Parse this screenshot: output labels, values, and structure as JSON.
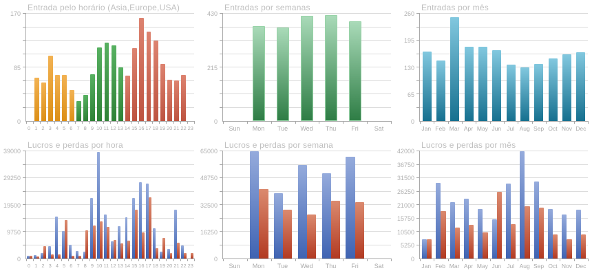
{
  "palettes": {
    "asia": [
      "#f2b253",
      "#dc8f16"
    ],
    "europe": [
      "#57b161",
      "#2e8136"
    ],
    "usa": [
      "#dd8370",
      "#bd5340"
    ],
    "green2": [
      "#a9dab8",
      "#2e7d45",
      "#97d3a7"
    ],
    "teal": [
      "#82c8df",
      "#16708f"
    ],
    "blue": [
      "#95abdc",
      "#3f63b2"
    ],
    "red": [
      "#db8a6f",
      "#b23a22"
    ]
  },
  "chart_data": [
    {
      "id": "entries-by-hour",
      "type": "bar",
      "title": "Entrada pelo horário (Asia,Europe,USA)",
      "xlabel": "",
      "ylabel": "",
      "categories": [
        "0",
        "1",
        "2",
        "3",
        "4",
        "5",
        "6",
        "7",
        "8",
        "9",
        "10",
        "11",
        "12",
        "13",
        "14",
        "15",
        "16",
        "17",
        "18",
        "19",
        "20",
        "21",
        "22",
        "23"
      ],
      "ymax": 170,
      "grid_divisions": 8,
      "yticks": [
        {
          "value": 170,
          "label": "170"
        },
        {
          "value": 85,
          "label": "85"
        },
        {
          "value": 0,
          "label": "0"
        }
      ],
      "series": [
        {
          "values": [
            0,
            69,
            61,
            103,
            73,
            73,
            49,
            32,
            41,
            74,
            117,
            124,
            120,
            85,
            72,
            115,
            163,
            142,
            128,
            90,
            65,
            64,
            73,
            0
          ],
          "palette_per_bar": [
            "asia",
            "asia",
            "asia",
            "asia",
            "asia",
            "asia",
            "asia",
            "europe",
            "europe",
            "europe",
            "europe",
            "europe",
            "europe",
            "europe",
            "usa",
            "usa",
            "usa",
            "usa",
            "usa",
            "usa",
            "usa",
            "usa",
            "usa",
            "usa"
          ]
        }
      ]
    },
    {
      "id": "entries-by-week",
      "type": "bar",
      "title": "Entradas por semanas",
      "xlabel": "",
      "ylabel": "",
      "categories": [
        "Sun",
        "Mon",
        "Tue",
        "Wed",
        "Thu",
        "Fri",
        "Sat"
      ],
      "ymax": 430,
      "grid_divisions": 8,
      "yticks": [
        {
          "value": 430,
          "label": "430"
        },
        {
          "value": 215,
          "label": "215"
        },
        {
          "value": 0,
          "label": "0"
        }
      ],
      "series": [
        {
          "palette": "green2",
          "values": [
            0,
            375,
            370,
            415,
            420,
            395,
            0
          ]
        }
      ]
    },
    {
      "id": "entries-by-month",
      "type": "bar",
      "title": "Entradas por mês",
      "xlabel": "",
      "ylabel": "",
      "categories": [
        "Jan",
        "Feb",
        "Mar",
        "Apr",
        "May",
        "Jun",
        "Jul",
        "Aug",
        "Sep",
        "Oct",
        "Nov",
        "Dec"
      ],
      "ymax": 260,
      "grid_divisions": 8,
      "yticks": [
        {
          "value": 260,
          "label": "260"
        },
        {
          "value": 195,
          "label": "195"
        },
        {
          "value": 130,
          "label": "130"
        },
        {
          "value": 65,
          "label": "65"
        },
        {
          "value": 0,
          "label": "0"
        }
      ],
      "series": [
        {
          "palette": "teal",
          "values": [
            168,
            147,
            252,
            180,
            180,
            171,
            137,
            130,
            139,
            151,
            162,
            167
          ]
        }
      ]
    },
    {
      "id": "profit-loss-by-hour",
      "type": "bar",
      "title": "Lucros e perdas por hora",
      "xlabel": "",
      "ylabel": "",
      "categories": [
        "0",
        "1",
        "2",
        "3",
        "4",
        "5",
        "6",
        "7",
        "8",
        "9",
        "10",
        "11",
        "12",
        "13",
        "14",
        "15",
        "16",
        "17",
        "18",
        "19",
        "20",
        "21",
        "22",
        "23"
      ],
      "ymax": 39000,
      "grid_divisions": 8,
      "yticks": [
        {
          "value": 39000,
          "label": "39000"
        },
        {
          "value": 29250,
          "label": "29250"
        },
        {
          "value": 19500,
          "label": "19500"
        },
        {
          "value": 9750,
          "label": "9750"
        },
        {
          "value": 0,
          "label": "0"
        }
      ],
      "series": [
        {
          "palette": "blue",
          "values": [
            1100,
            1200,
            1900,
            4500,
            15200,
            10000,
            5100,
            2800,
            2400,
            22000,
            38800,
            16000,
            6300,
            11800,
            15000,
            22100,
            27700,
            27300,
            10900,
            2500,
            3500,
            17800,
            4800,
            0
          ]
        },
        {
          "palette": "red",
          "values": [
            1000,
            800,
            4500,
            1500,
            1400,
            14000,
            1100,
            900,
            10300,
            11900,
            13500,
            11600,
            6700,
            5600,
            6400,
            17800,
            9600,
            22300,
            3800,
            7500,
            2100,
            5700,
            1900,
            2000
          ]
        }
      ]
    },
    {
      "id": "profit-loss-by-week",
      "type": "bar",
      "title": "Lucros e perdas por semana",
      "xlabel": "",
      "ylabel": "",
      "categories": [
        "Sun",
        "Mon",
        "Tue",
        "Wed",
        "Thu",
        "Fri",
        "Sat"
      ],
      "ymax": 65000,
      "grid_divisions": 8,
      "yticks": [
        {
          "value": 65000,
          "label": "65000"
        },
        {
          "value": 48750,
          "label": "48750"
        },
        {
          "value": 32500,
          "label": "32500"
        },
        {
          "value": 16250,
          "label": "16250"
        },
        {
          "value": 0,
          "label": "0"
        }
      ],
      "series": [
        {
          "palette": "blue",
          "values": [
            0,
            65000,
            39500,
            56500,
            51500,
            61500,
            0
          ]
        },
        {
          "palette": "red",
          "values": [
            0,
            42000,
            29500,
            26500,
            35000,
            34300,
            0
          ]
        }
      ]
    },
    {
      "id": "profit-loss-by-month",
      "type": "bar",
      "title": "Lucros e perdas por mês",
      "xlabel": "",
      "ylabel": "",
      "categories": [
        "Jan",
        "Feb",
        "Mar",
        "Apr",
        "May",
        "Jun",
        "Jul",
        "Aug",
        "Sep",
        "Oct",
        "Nov",
        "Dec"
      ],
      "ymax": 42000,
      "grid_divisions": 8,
      "yticks": [
        {
          "value": 42000,
          "label": "42000"
        },
        {
          "value": 36750,
          "label": "36750"
        },
        {
          "value": 31500,
          "label": "31500"
        },
        {
          "value": 26250,
          "label": "26250"
        },
        {
          "value": 21000,
          "label": "21000"
        },
        {
          "value": 15750,
          "label": "15750"
        },
        {
          "value": 10500,
          "label": "10500"
        },
        {
          "value": 5250,
          "label": "5250"
        },
        {
          "value": 0,
          "label": "0"
        }
      ],
      "series": [
        {
          "palette": "blue",
          "values": [
            7500,
            29500,
            22200,
            23500,
            19300,
            15300,
            29400,
            42000,
            30200,
            19400,
            17300,
            19000
          ]
        },
        {
          "palette": "red",
          "values": [
            7600,
            18500,
            12000,
            13200,
            10200,
            26250,
            13400,
            20500,
            20000,
            9500,
            7600,
            9500
          ]
        }
      ]
    }
  ]
}
